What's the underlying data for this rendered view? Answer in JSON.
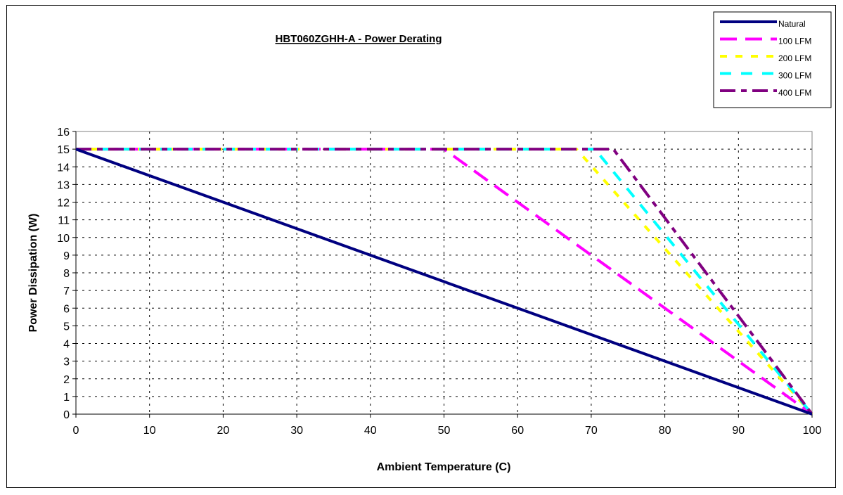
{
  "chart_data": {
    "type": "line",
    "title": "HBT060ZGHH-A - Power Derating",
    "xlabel": "Ambient Temperature (C)",
    "ylabel": "Power Dissipation (W)",
    "xlim": [
      0,
      100
    ],
    "ylim": [
      0,
      16
    ],
    "xticks": [
      0,
      10,
      20,
      30,
      40,
      50,
      60,
      70,
      80,
      90,
      100
    ],
    "yticks": [
      0,
      1,
      2,
      3,
      4,
      5,
      6,
      7,
      8,
      9,
      10,
      11,
      12,
      13,
      14,
      15,
      16
    ],
    "grid": true,
    "legend_position": "top-right",
    "series": [
      {
        "name": "Natural",
        "color": "#000080",
        "dash": "solid",
        "points": [
          [
            0,
            15
          ],
          [
            100,
            0
          ]
        ]
      },
      {
        "name": "100 LFM",
        "color": "#ff00ff",
        "dash": "long",
        "points": [
          [
            0,
            15
          ],
          [
            50,
            15
          ],
          [
            100,
            0
          ]
        ]
      },
      {
        "name": "200 LFM",
        "color": "#ffff00",
        "dash": "short",
        "points": [
          [
            0,
            15
          ],
          [
            68,
            15
          ],
          [
            100,
            0
          ]
        ]
      },
      {
        "name": "300 LFM",
        "color": "#00ffff",
        "dash": "medium",
        "points": [
          [
            0,
            15
          ],
          [
            70.5,
            15
          ],
          [
            100,
            0
          ]
        ]
      },
      {
        "name": "400 LFM",
        "color": "#800080",
        "dash": "dashdot",
        "points": [
          [
            0,
            15
          ],
          [
            73,
            15
          ],
          [
            100,
            0
          ]
        ]
      }
    ]
  }
}
